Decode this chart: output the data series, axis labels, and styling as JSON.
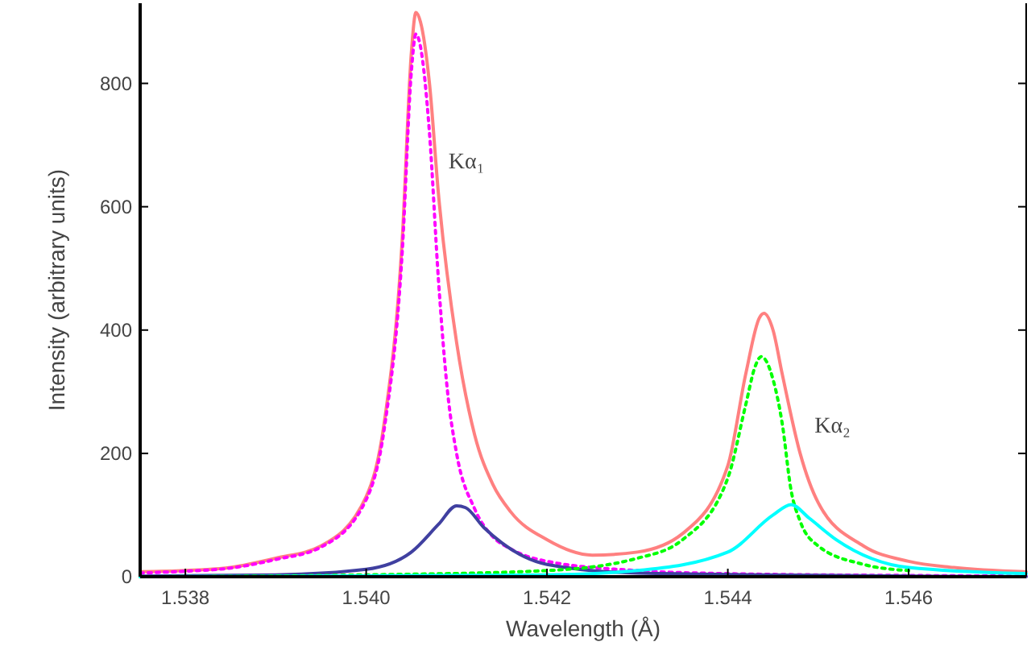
{
  "chart_data": {
    "type": "line",
    "xlabel": "Wavelength (Å)",
    "ylabel": "Intensity (arbitrary units)",
    "xlim": [
      1.5375,
      1.5473
    ],
    "ylim": [
      0,
      930
    ],
    "xticks": [
      {
        "value": 1.538,
        "label": "1.538"
      },
      {
        "value": 1.54,
        "label": "1.540"
      },
      {
        "value": 1.542,
        "label": "1.542"
      },
      {
        "value": 1.544,
        "label": "1.544"
      },
      {
        "value": 1.546,
        "label": "1.546"
      }
    ],
    "yticks": [
      0,
      200,
      400,
      600,
      800
    ],
    "grid": false,
    "annotations": [
      "Kα₁",
      "Kα₂"
    ],
    "series": [
      {
        "color": "#ff8080",
        "line_style": "solid",
        "x": [
          1.5375,
          1.538,
          1.5385,
          1.539,
          1.5395,
          1.54,
          1.5402,
          1.5404,
          1.5405,
          1.54055,
          1.5406,
          1.5407,
          1.5408,
          1.541,
          1.5412,
          1.5414,
          1.5416,
          1.542,
          1.5425,
          1.543,
          1.5435,
          1.544,
          1.5442,
          1.54435,
          1.5444,
          1.5445,
          1.5446,
          1.5448,
          1.545,
          1.5455,
          1.546,
          1.5465,
          1.5473
        ],
        "values": [
          8,
          10,
          15,
          30,
          50,
          130,
          250,
          550,
          850,
          915,
          900,
          800,
          620,
          380,
          230,
          150,
          105,
          60,
          35,
          40,
          70,
          180,
          330,
          420,
          427,
          400,
          330,
          200,
          120,
          50,
          25,
          15,
          8
        ]
      },
      {
        "color": "#ff00ff",
        "line_style": "dotted",
        "x": [
          1.5375,
          1.538,
          1.5385,
          1.539,
          1.5395,
          1.54,
          1.5402,
          1.5404,
          1.5405,
          1.54055,
          1.5406,
          1.5407,
          1.5408,
          1.5409,
          1.541,
          1.5412,
          1.5414,
          1.5416,
          1.542,
          1.543,
          1.544,
          1.546,
          1.5473
        ],
        "values": [
          6,
          9,
          14,
          28,
          48,
          125,
          240,
          530,
          820,
          880,
          860,
          720,
          480,
          300,
          200,
          110,
          65,
          45,
          25,
          10,
          5,
          2,
          1
        ]
      },
      {
        "color": "#4040a0",
        "line_style": "solid",
        "x": [
          1.5375,
          1.539,
          1.54,
          1.5405,
          1.5408,
          1.541,
          1.5411,
          1.5413,
          1.5415,
          1.542,
          1.543,
          1.5473
        ],
        "values": [
          1,
          3,
          12,
          40,
          85,
          115,
          112,
          80,
          55,
          20,
          6,
          0
        ]
      },
      {
        "color": "#00ff00",
        "line_style": "dotted",
        "x": [
          1.5375,
          1.54,
          1.542,
          1.543,
          1.5435,
          1.544,
          1.5442,
          1.5443,
          1.54437,
          1.5445,
          1.5446,
          1.5447,
          1.5448,
          1.545,
          1.5455,
          1.546
        ],
        "values": [
          0,
          3,
          10,
          30,
          60,
          160,
          280,
          340,
          357,
          320,
          250,
          140,
          90,
          50,
          20,
          10
        ]
      },
      {
        "color": "#00ffff",
        "line_style": "solid",
        "x": [
          1.5375,
          1.542,
          1.543,
          1.544,
          1.5445,
          1.5447,
          1.5449,
          1.5452,
          1.546,
          1.5473
        ],
        "values": [
          0,
          3,
          10,
          40,
          100,
          117,
          95,
          60,
          15,
          5
        ]
      }
    ]
  }
}
